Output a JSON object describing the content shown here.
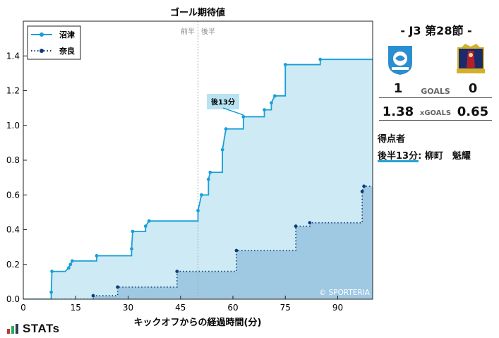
{
  "chart_data": {
    "type": "line",
    "title": "ゴール期待値",
    "xlabel": "キックオフからの経過時間(分)",
    "ylabel": "",
    "xlim": [
      0,
      100
    ],
    "ylim": [
      0,
      1.6
    ],
    "xticks": [
      0,
      15,
      30,
      45,
      60,
      75,
      90
    ],
    "yticks": [
      0.0,
      0.2,
      0.4,
      0.6,
      0.8,
      1.0,
      1.2,
      1.4
    ],
    "half_labels": [
      "前半",
      "後半"
    ],
    "half_line_x": 50,
    "annotation": {
      "text": "後13分",
      "x": 63,
      "y": 1.06
    },
    "watermark": "© SPORTERIA",
    "legend_position": "top-left",
    "series": [
      {
        "name": "沼津",
        "color": "#1a9fd6",
        "fill": "#cdeaf5",
        "style": "solid",
        "points": [
          [
            0,
            0
          ],
          [
            8,
            0
          ],
          [
            8,
            0.04
          ],
          [
            8.2,
            0.16
          ],
          [
            12,
            0.16
          ],
          [
            13,
            0.18
          ],
          [
            13.5,
            0.2
          ],
          [
            14,
            0.22
          ],
          [
            21,
            0.22
          ],
          [
            21,
            0.25
          ],
          [
            31,
            0.25
          ],
          [
            31,
            0.29
          ],
          [
            31.3,
            0.39
          ],
          [
            35,
            0.39
          ],
          [
            35,
            0.42
          ],
          [
            36,
            0.45
          ],
          [
            50,
            0.45
          ],
          [
            50,
            0.51
          ],
          [
            51,
            0.6
          ],
          [
            53,
            0.6
          ],
          [
            53,
            0.69
          ],
          [
            53.5,
            0.73
          ],
          [
            57,
            0.73
          ],
          [
            57,
            0.86
          ],
          [
            58,
            0.98
          ],
          [
            63,
            0.98
          ],
          [
            63,
            1.05
          ],
          [
            69,
            1.05
          ],
          [
            69,
            1.09
          ],
          [
            71,
            1.09
          ],
          [
            71,
            1.13
          ],
          [
            72,
            1.17
          ],
          [
            75,
            1.17
          ],
          [
            75,
            1.35
          ],
          [
            85,
            1.35
          ],
          [
            85,
            1.38
          ],
          [
            100,
            1.38
          ]
        ]
      },
      {
        "name": "奈良",
        "color": "#0d3c78",
        "fill": "#9fc8e2",
        "style": "dotted",
        "points": [
          [
            0,
            0
          ],
          [
            20,
            0
          ],
          [
            20,
            0.02
          ],
          [
            27,
            0.02
          ],
          [
            27,
            0.07
          ],
          [
            44,
            0.07
          ],
          [
            44,
            0.16
          ],
          [
            61,
            0.16
          ],
          [
            61,
            0.28
          ],
          [
            78,
            0.28
          ],
          [
            78,
            0.42
          ],
          [
            82,
            0.42
          ],
          [
            82,
            0.44
          ],
          [
            97,
            0.44
          ],
          [
            97,
            0.62
          ],
          [
            97.5,
            0.65
          ],
          [
            100,
            0.65
          ]
        ]
      }
    ]
  },
  "match": {
    "title": "-  J3 第28節  -",
    "goals_home": "1",
    "goals_label": "GOALS",
    "goals_away": "0",
    "xg_home": "1.38",
    "xg_label": "xGOALS",
    "xg_away": "0.65",
    "home_crest_colors": [
      "#2a8fd0",
      "#ffffff"
    ],
    "away_crest_colors": [
      "#1b2a6b",
      "#d4b12a",
      "#b3202a"
    ]
  },
  "scorers": {
    "title": "得点者",
    "items": [
      "後半13分: 柳町　魁耀"
    ]
  },
  "footer": {
    "logo_text": "STATs"
  }
}
